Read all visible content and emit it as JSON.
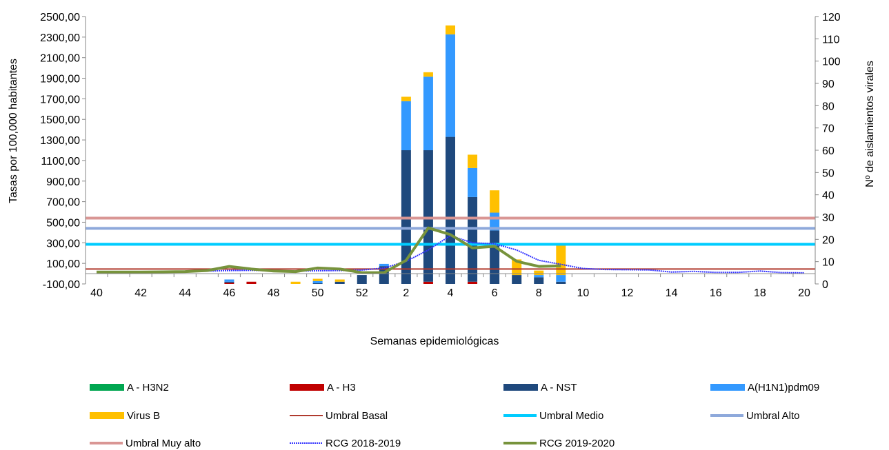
{
  "chart_data": {
    "type": "bar",
    "xlabel": "Semanas epidemiológicas",
    "ylabel_left": "Tasas por 100,000 habitantes",
    "ylabel_right": "Nº de aislamientos virales",
    "ylim_left": [
      -100,
      2500
    ],
    "ylim_right": [
      0,
      120
    ],
    "left_ticks": [
      "-100,00",
      "100,00",
      "300,00",
      "500,00",
      "700,00",
      "900,00",
      "1100,00",
      "1300,00",
      "1500,00",
      "1700,00",
      "1900,00",
      "2100,00",
      "2300,00",
      "2500,00"
    ],
    "right_ticks": [
      "0",
      "10",
      "20",
      "30",
      "40",
      "50",
      "60",
      "70",
      "80",
      "90",
      "100",
      "110",
      "120"
    ],
    "weeks": [
      "40",
      "41",
      "42",
      "43",
      "44",
      "45",
      "46",
      "47",
      "48",
      "49",
      "50",
      "51",
      "52",
      "1",
      "2",
      "3",
      "4",
      "5",
      "6",
      "7",
      "8",
      "9",
      "10",
      "11",
      "12",
      "13",
      "14",
      "15",
      "16",
      "17",
      "18",
      "19",
      "20"
    ],
    "x_tick_labels": [
      "40",
      "",
      "42",
      "",
      "44",
      "",
      "46",
      "",
      "48",
      "",
      "50",
      "",
      "52",
      "",
      "2",
      "",
      "4",
      "",
      "6",
      "",
      "8",
      "",
      "10",
      "",
      "12",
      "",
      "14",
      "",
      "16",
      "",
      "18",
      "",
      "20"
    ],
    "bar_series": [
      {
        "name": "A - H3N2",
        "color": "#00a650",
        "values": [
          0,
          0,
          0,
          0,
          0,
          0,
          0,
          0,
          0,
          0,
          0,
          0,
          0,
          0,
          0,
          0,
          0,
          0,
          0,
          0,
          0,
          0,
          0,
          0,
          0,
          0,
          0,
          0,
          0,
          0,
          0,
          0,
          0
        ]
      },
      {
        "name": "A - H3",
        "color": "#c00000",
        "values": [
          0,
          0,
          0,
          0,
          0,
          0,
          0.5,
          1,
          0,
          0,
          0,
          0,
          0,
          0,
          0,
          1,
          0,
          1,
          0,
          0,
          0,
          0,
          0,
          0,
          0,
          0,
          0,
          0,
          0,
          0,
          0,
          0,
          0
        ]
      },
      {
        "name": "A - NST",
        "color": "#1f497d",
        "values": [
          0,
          0,
          0,
          0,
          0,
          0,
          0.5,
          0,
          0,
          0,
          0.3,
          1,
          4,
          8,
          60,
          59,
          66,
          38,
          24,
          4,
          3,
          1,
          0,
          0,
          0,
          0,
          0,
          0,
          0,
          0,
          0,
          0,
          0
        ]
      },
      {
        "name": "A(H1N1)pdm09",
        "color": "#3399ff",
        "values": [
          0,
          0,
          0,
          0,
          0,
          0,
          1,
          0,
          0,
          0,
          1,
          0,
          0,
          1,
          22,
          33,
          46,
          13,
          8,
          0,
          1,
          3,
          0,
          0,
          0,
          0,
          0,
          0,
          0,
          0,
          0,
          0,
          0
        ]
      },
      {
        "name": "Virus B",
        "color": "#ffc000",
        "values": [
          0,
          0,
          0,
          0,
          0,
          0,
          0,
          0,
          0,
          1,
          1,
          1,
          0,
          0,
          2,
          2,
          4,
          6,
          10,
          7,
          2,
          14,
          0,
          0,
          0,
          0,
          0,
          0,
          0,
          0,
          0,
          0,
          0
        ]
      }
    ],
    "threshold_series": [
      {
        "name": "Umbral Basal",
        "color": "#b03a2e",
        "value": 45
      },
      {
        "name": "Umbral Medio",
        "color": "#00ccff",
        "value": 285
      },
      {
        "name": "Umbral Alto",
        "color": "#8ea9db",
        "value": 440
      },
      {
        "name": "Umbral Muy alto",
        "color": "#d99694",
        "value": 540
      }
    ],
    "line_series": [
      {
        "name": "RCG 2018-2019",
        "color": "#3333ff",
        "dotted": true,
        "values": [
          15,
          16,
          18,
          20,
          22,
          25,
          30,
          32,
          28,
          25,
          28,
          30,
          35,
          55,
          120,
          230,
          370,
          300,
          290,
          230,
          130,
          90,
          50,
          40,
          38,
          36,
          15,
          22,
          12,
          12,
          25,
          10,
          8
        ]
      },
      {
        "name": "RCG 2019-2020",
        "color": "#77933c",
        "dotted": false,
        "values": [
          15,
          15,
          16,
          17,
          20,
          30,
          70,
          45,
          25,
          20,
          55,
          45,
          10,
          10,
          130,
          445,
          380,
          250,
          265,
          120,
          70,
          75,
          null,
          null,
          null,
          null,
          null,
          null,
          null,
          null,
          null,
          null,
          null
        ]
      }
    ],
    "legend": [
      {
        "name": "A - H3N2",
        "color": "#00a650",
        "style": "bar"
      },
      {
        "name": "A - H3",
        "color": "#c00000",
        "style": "bar"
      },
      {
        "name": "A - NST",
        "color": "#1f497d",
        "style": "bar"
      },
      {
        "name": "A(H1N1)pdm09",
        "color": "#3399ff",
        "style": "bar"
      },
      {
        "name": "Virus B",
        "color": "#ffc000",
        "style": "bar"
      },
      {
        "name": "Umbral Basal",
        "color": "#b03a2e",
        "style": "line"
      },
      {
        "name": "Umbral Medio",
        "color": "#00ccff",
        "style": "thick"
      },
      {
        "name": "Umbral Alto",
        "color": "#8ea9db",
        "style": "thick"
      },
      {
        "name": "Umbral Muy alto",
        "color": "#d99694",
        "style": "thick"
      },
      {
        "name": "RCG 2018-2019",
        "color": "#3333ff",
        "style": "dotted"
      },
      {
        "name": "RCG 2019-2020",
        "color": "#77933c",
        "style": "thick"
      }
    ],
    "legend_placement": "bottom",
    "grid": false
  }
}
